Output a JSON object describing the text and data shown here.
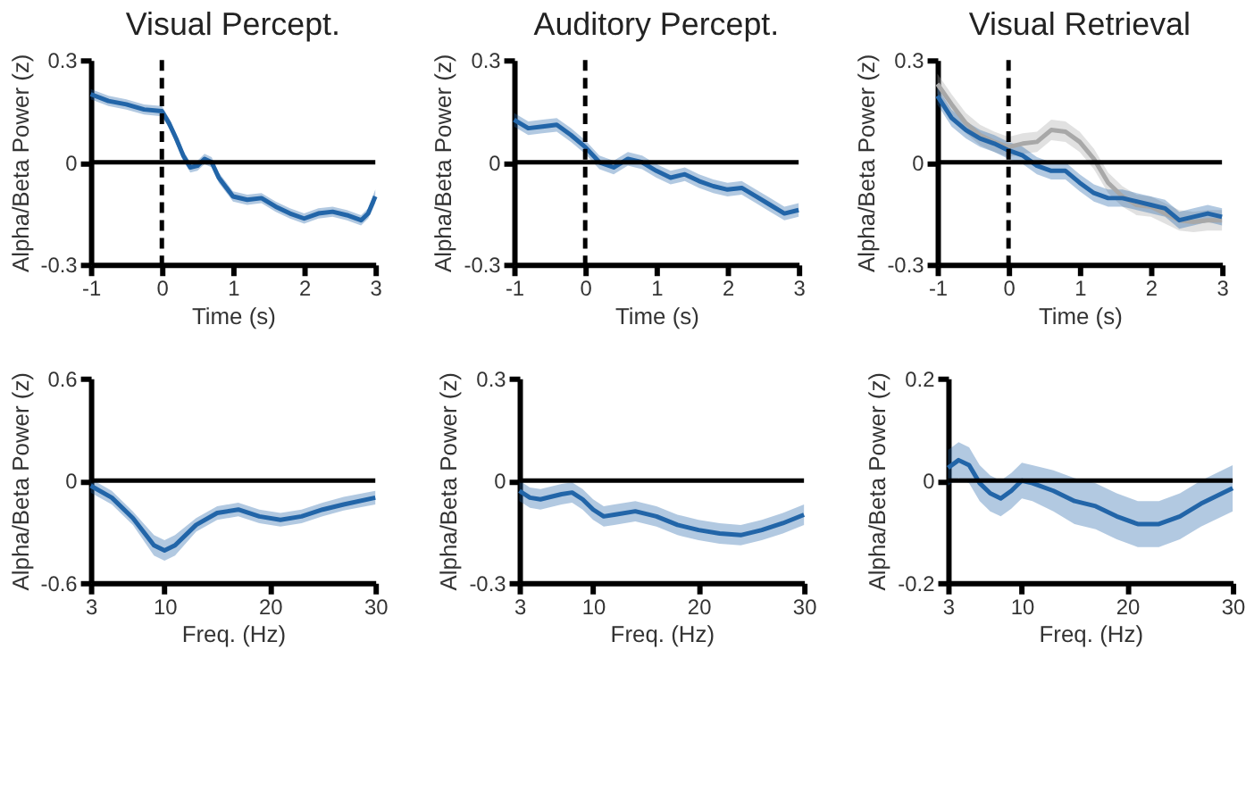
{
  "chart_data": [
    {
      "type": "line",
      "title": "Visual Percept.",
      "xlabel": "Time (s)",
      "ylabel": "Alpha/Beta Power (z)",
      "xlim": [
        -1,
        3
      ],
      "xticks": [
        -1,
        0,
        1,
        2,
        3
      ],
      "ylim": [
        -0.3,
        0.3
      ],
      "yticks": [
        -0.3,
        0,
        0.3
      ],
      "x": [
        -1,
        -0.75,
        -0.5,
        -0.25,
        0,
        0.1,
        0.2,
        0.3,
        0.4,
        0.5,
        0.6,
        0.7,
        0.8,
        1.0,
        1.2,
        1.4,
        1.6,
        1.8,
        2.0,
        2.2,
        2.4,
        2.6,
        2.8,
        2.9,
        3.0
      ],
      "series": [
        {
          "color": "#2265a8",
          "values": [
            0.2,
            0.18,
            0.17,
            0.155,
            0.15,
            0.115,
            0.07,
            0.02,
            -0.015,
            -0.01,
            0.01,
            0,
            -0.045,
            -0.1,
            -0.11,
            -0.105,
            -0.13,
            -0.15,
            -0.165,
            -0.15,
            -0.145,
            -0.155,
            -0.17,
            -0.15,
            -0.1
          ],
          "lower": [
            0.185,
            0.165,
            0.155,
            0.14,
            0.135,
            0.1,
            0.055,
            0.005,
            -0.03,
            -0.025,
            -0.005,
            -0.015,
            -0.06,
            -0.115,
            -0.125,
            -0.12,
            -0.145,
            -0.165,
            -0.18,
            -0.165,
            -0.16,
            -0.17,
            -0.185,
            -0.165,
            -0.12
          ],
          "upper": [
            0.215,
            0.195,
            0.185,
            0.17,
            0.165,
            0.13,
            0.085,
            0.035,
            0,
            0.005,
            0.025,
            0.015,
            -0.03,
            -0.085,
            -0.095,
            -0.09,
            -0.115,
            -0.135,
            -0.15,
            -0.135,
            -0.13,
            -0.14,
            -0.155,
            -0.135,
            -0.08
          ]
        }
      ],
      "ref_lines": [
        {
          "axis": "y",
          "value": 0,
          "line_style": "solid"
        },
        {
          "axis": "x",
          "value": 0,
          "line_style": "dashed"
        }
      ]
    },
    {
      "type": "line",
      "title": "Auditory Percept.",
      "xlabel": "Time (s)",
      "ylabel": "Alpha/Beta Power (z)",
      "xlim": [
        -1,
        3
      ],
      "xticks": [
        -1,
        0,
        1,
        2,
        3
      ],
      "ylim": [
        -0.3,
        0.3
      ],
      "yticks": [
        -0.3,
        0,
        0.3
      ],
      "x": [
        -1,
        -0.8,
        -0.6,
        -0.4,
        -0.2,
        0,
        0.2,
        0.4,
        0.6,
        0.8,
        1.0,
        1.2,
        1.4,
        1.6,
        1.8,
        2.0,
        2.2,
        2.4,
        2.6,
        2.8,
        3.0
      ],
      "series": [
        {
          "color": "#2265a8",
          "values": [
            0.125,
            0.1,
            0.105,
            0.11,
            0.08,
            0.045,
            0,
            -0.015,
            0.01,
            0,
            -0.025,
            -0.045,
            -0.035,
            -0.055,
            -0.07,
            -0.08,
            -0.075,
            -0.1,
            -0.125,
            -0.15,
            -0.14
          ],
          "lower": [
            0.105,
            0.08,
            0.085,
            0.09,
            0.06,
            0.025,
            -0.02,
            -0.035,
            -0.01,
            -0.02,
            -0.045,
            -0.065,
            -0.055,
            -0.075,
            -0.09,
            -0.1,
            -0.095,
            -0.12,
            -0.145,
            -0.17,
            -0.16
          ],
          "upper": [
            0.145,
            0.12,
            0.125,
            0.13,
            0.1,
            0.065,
            0.02,
            0.005,
            0.03,
            0.02,
            -0.005,
            -0.025,
            -0.015,
            -0.035,
            -0.05,
            -0.06,
            -0.055,
            -0.08,
            -0.105,
            -0.13,
            -0.12
          ]
        }
      ],
      "ref_lines": [
        {
          "axis": "y",
          "value": 0,
          "line_style": "solid"
        },
        {
          "axis": "x",
          "value": 0,
          "line_style": "dashed"
        }
      ]
    },
    {
      "type": "line",
      "title": "Visual Retrieval",
      "xlabel": "Time (s)",
      "ylabel": "Alpha/Beta Power (z)",
      "xlim": [
        -1,
        3
      ],
      "xticks": [
        -1,
        0,
        1,
        2,
        3
      ],
      "ylim": [
        -0.3,
        0.3
      ],
      "yticks": [
        -0.3,
        0,
        0.3
      ],
      "x": [
        -1,
        -0.8,
        -0.6,
        -0.4,
        -0.2,
        0,
        0.2,
        0.4,
        0.6,
        0.8,
        1.0,
        1.2,
        1.4,
        1.6,
        1.8,
        2.0,
        2.2,
        2.4,
        2.6,
        2.8,
        3.0
      ],
      "series": [
        {
          "color": "#a8a8a8",
          "values": [
            0.23,
            0.17,
            0.115,
            0.08,
            0.06,
            0.045,
            0.055,
            0.06,
            0.095,
            0.09,
            0.06,
            0.01,
            -0.06,
            -0.1,
            -0.125,
            -0.13,
            -0.15,
            -0.17,
            -0.175,
            -0.17,
            -0.17
          ],
          "lower": [
            0.2,
            0.14,
            0.085,
            0.05,
            0.03,
            0.015,
            0.025,
            0.03,
            0.065,
            0.06,
            0.03,
            -0.02,
            -0.09,
            -0.13,
            -0.155,
            -0.16,
            -0.18,
            -0.2,
            -0.205,
            -0.2,
            -0.2
          ],
          "upper": [
            0.26,
            0.2,
            0.145,
            0.11,
            0.09,
            0.075,
            0.085,
            0.09,
            0.125,
            0.12,
            0.09,
            0.04,
            -0.03,
            -0.07,
            -0.095,
            -0.1,
            -0.12,
            -0.14,
            -0.145,
            -0.14,
            -0.14
          ]
        },
        {
          "color": "#2265a8",
          "values": [
            0.195,
            0.13,
            0.095,
            0.07,
            0.055,
            0.035,
            0.02,
            -0.01,
            -0.025,
            -0.025,
            -0.06,
            -0.09,
            -0.105,
            -0.105,
            -0.115,
            -0.125,
            -0.135,
            -0.17,
            -0.16,
            -0.15,
            -0.16
          ],
          "lower": [
            0.17,
            0.105,
            0.07,
            0.045,
            0.03,
            0.01,
            -0.005,
            -0.035,
            -0.05,
            -0.05,
            -0.085,
            -0.115,
            -0.13,
            -0.13,
            -0.14,
            -0.15,
            -0.16,
            -0.195,
            -0.185,
            -0.175,
            -0.185
          ],
          "upper": [
            0.22,
            0.155,
            0.12,
            0.095,
            0.08,
            0.06,
            0.045,
            0.015,
            0,
            0,
            -0.035,
            -0.065,
            -0.08,
            -0.08,
            -0.09,
            -0.1,
            -0.11,
            -0.145,
            -0.135,
            -0.125,
            -0.135
          ]
        }
      ],
      "ref_lines": [
        {
          "axis": "y",
          "value": 0,
          "line_style": "solid"
        },
        {
          "axis": "x",
          "value": 0,
          "line_style": "dashed"
        }
      ]
    },
    {
      "type": "line",
      "xlabel": "Freq. (Hz)",
      "ylabel": "Alpha/Beta Power (z)",
      "xlim": [
        3,
        30
      ],
      "xticks": [
        3,
        10,
        20,
        30
      ],
      "ylim": [
        -0.6,
        0.6
      ],
      "yticks": [
        -0.6,
        0,
        0.6
      ],
      "x": [
        3,
        5,
        7,
        9,
        10,
        11,
        13,
        15,
        17,
        19,
        21,
        23,
        25,
        27,
        30
      ],
      "series": [
        {
          "color": "#2265a8",
          "values": [
            -0.03,
            -0.1,
            -0.22,
            -0.38,
            -0.41,
            -0.38,
            -0.26,
            -0.19,
            -0.17,
            -0.21,
            -0.23,
            -0.21,
            -0.17,
            -0.14,
            -0.1
          ],
          "lower": [
            -0.07,
            -0.14,
            -0.26,
            -0.44,
            -0.47,
            -0.44,
            -0.3,
            -0.23,
            -0.21,
            -0.25,
            -0.27,
            -0.25,
            -0.21,
            -0.175,
            -0.14
          ],
          "upper": [
            0.01,
            -0.06,
            -0.18,
            -0.32,
            -0.35,
            -0.32,
            -0.22,
            -0.15,
            -0.13,
            -0.17,
            -0.19,
            -0.17,
            -0.13,
            -0.095,
            -0.06
          ]
        }
      ],
      "ref_lines": [
        {
          "axis": "y",
          "value": 0,
          "line_style": "solid"
        }
      ]
    },
    {
      "type": "line",
      "xlabel": "Freq. (Hz)",
      "ylabel": "Alpha/Beta Power (z)",
      "xlim": [
        3,
        30
      ],
      "xticks": [
        3,
        10,
        20,
        30
      ],
      "ylim": [
        -0.3,
        0.3
      ],
      "yticks": [
        -0.3,
        0,
        0.3
      ],
      "x": [
        3,
        4,
        5,
        7,
        8,
        9,
        10,
        11,
        12,
        14,
        16,
        18,
        20,
        22,
        24,
        26,
        28,
        30
      ],
      "series": [
        {
          "color": "#2265a8",
          "values": [
            -0.03,
            -0.05,
            -0.055,
            -0.04,
            -0.035,
            -0.055,
            -0.085,
            -0.105,
            -0.1,
            -0.09,
            -0.105,
            -0.13,
            -0.145,
            -0.155,
            -0.16,
            -0.145,
            -0.125,
            -0.1
          ],
          "lower": [
            -0.06,
            -0.08,
            -0.085,
            -0.07,
            -0.065,
            -0.085,
            -0.115,
            -0.135,
            -0.13,
            -0.12,
            -0.135,
            -0.16,
            -0.175,
            -0.185,
            -0.19,
            -0.175,
            -0.155,
            -0.13
          ],
          "upper": [
            0,
            -0.02,
            -0.025,
            -0.01,
            -0.005,
            -0.025,
            -0.055,
            -0.075,
            -0.07,
            -0.06,
            -0.075,
            -0.1,
            -0.115,
            -0.125,
            -0.13,
            -0.115,
            -0.095,
            -0.07
          ]
        }
      ],
      "ref_lines": [
        {
          "axis": "y",
          "value": 0,
          "line_style": "solid"
        }
      ]
    },
    {
      "type": "line",
      "xlabel": "Freq. (Hz)",
      "ylabel": "Alpha/Beta Power (z)",
      "xlim": [
        3,
        30
      ],
      "xticks": [
        3,
        10,
        20,
        30
      ],
      "ylim": [
        -0.2,
        0.2
      ],
      "yticks": [
        -0.2,
        0,
        0.2
      ],
      "x": [
        3,
        4,
        5,
        6,
        7,
        8,
        9,
        10,
        11,
        13,
        15,
        17,
        19,
        21,
        23,
        25,
        27,
        30
      ],
      "series": [
        {
          "color": "#2265a8",
          "values": [
            0.025,
            0.04,
            0.03,
            -0.005,
            -0.025,
            -0.035,
            -0.02,
            0,
            -0.005,
            -0.02,
            -0.04,
            -0.05,
            -0.07,
            -0.085,
            -0.085,
            -0.07,
            -0.045,
            -0.015
          ],
          "lower": [
            -0.01,
            0.005,
            -0.005,
            -0.04,
            -0.06,
            -0.07,
            -0.055,
            -0.035,
            -0.04,
            -0.06,
            -0.085,
            -0.095,
            -0.115,
            -0.13,
            -0.13,
            -0.115,
            -0.09,
            -0.06
          ],
          "upper": [
            0.06,
            0.075,
            0.065,
            0.03,
            0.01,
            0,
            0.015,
            0.035,
            0.03,
            0.02,
            0.005,
            -0.005,
            -0.025,
            -0.04,
            -0.04,
            -0.025,
            0,
            0.03
          ]
        }
      ],
      "ref_lines": [
        {
          "axis": "y",
          "value": 0,
          "line_style": "solid"
        }
      ]
    }
  ]
}
